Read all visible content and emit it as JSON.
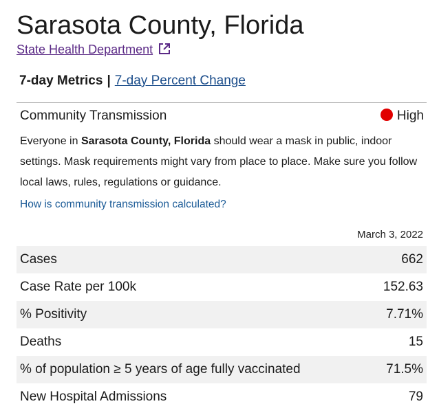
{
  "header": {
    "title": "Sarasota County, Florida",
    "link": "State Health Department"
  },
  "tabs": {
    "active": "7-day Metrics",
    "separator": "|",
    "other": "7-day Percent Change"
  },
  "transmission": {
    "label": "Community Transmission",
    "level": "High",
    "description": {
      "before": "Everyone in ",
      "bold": "Sarasota County, Florida",
      "after": " should wear a mask in public, indoor settings. Mask requirements might vary from place to place. Make sure you follow local laws, rules, regulations or guidance."
    },
    "link": "How is community transmission calculated?"
  },
  "table": {
    "date": "March 3, 2022",
    "rows": [
      [
        "Cases",
        "662"
      ],
      [
        "Case Rate per 100k",
        "152.63"
      ],
      [
        "% Positivity",
        "7.71%"
      ],
      [
        "Deaths",
        "15"
      ],
      [
        "% of population ≥ 5 years of age fully vaccinated",
        "71.5%"
      ],
      [
        "New Hospital Admissions",
        "79"
      ]
    ]
  }
}
